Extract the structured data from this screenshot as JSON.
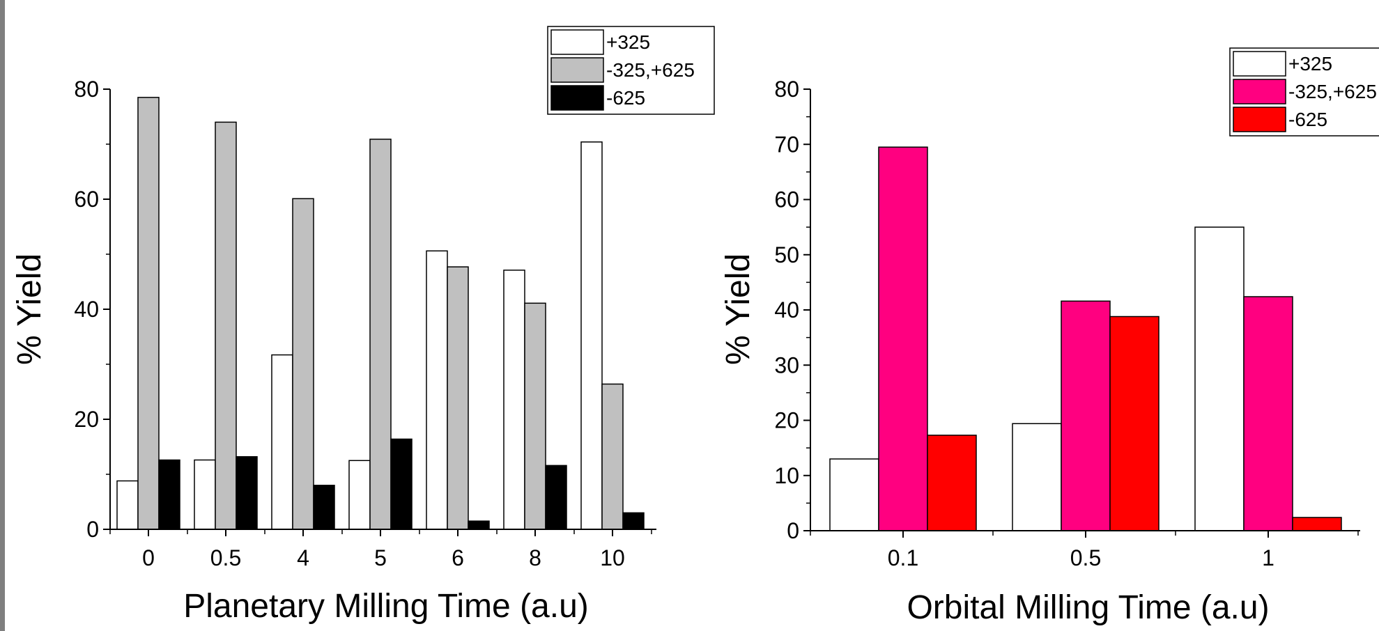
{
  "chart_data": [
    {
      "type": "bar",
      "xlabel": "Planetary Milling Time (a.u)",
      "ylabel": "% Yield",
      "categories": [
        "0",
        "0.5",
        "4",
        "5",
        "6",
        "8",
        "10"
      ],
      "ylim": [
        0,
        80
      ],
      "yticks": [
        "0",
        "20",
        "40",
        "60",
        "80"
      ],
      "grid": false,
      "legend": "top-right",
      "series": [
        {
          "name": "+325",
          "color": "#ffffff",
          "values": [
            8.8,
            12.6,
            31.7,
            12.5,
            50.6,
            47.1,
            70.4
          ]
        },
        {
          "name": "-325,+625",
          "color": "#c0c0c0",
          "values": [
            78.5,
            74.0,
            60.1,
            70.9,
            47.7,
            41.1,
            26.4
          ]
        },
        {
          "name": "-625",
          "color": "#000000",
          "values": [
            12.6,
            13.2,
            8.0,
            16.4,
            1.5,
            11.6,
            3.0
          ]
        }
      ]
    },
    {
      "type": "bar",
      "xlabel": "Orbital Milling Time (a.u)",
      "ylabel": "% Yield",
      "categories": [
        "0.1",
        "0.5",
        "1"
      ],
      "ylim": [
        0,
        80
      ],
      "yticks": [
        "0",
        "10",
        "20",
        "30",
        "40",
        "50",
        "60",
        "70",
        "80"
      ],
      "grid": false,
      "legend": "top-right",
      "series": [
        {
          "name": "+325",
          "color": "#ffffff",
          "values": [
            13.0,
            19.4,
            55.0
          ]
        },
        {
          "name": "-325,+625",
          "color": "#ff0080",
          "values": [
            69.5,
            41.6,
            42.4
          ]
        },
        {
          "name": "-625",
          "color": "#ff0000",
          "values": [
            17.3,
            38.8,
            2.4
          ]
        }
      ]
    }
  ]
}
